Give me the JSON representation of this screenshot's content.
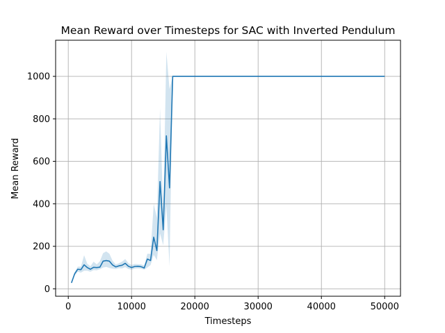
{
  "chart_data": {
    "type": "line",
    "title": "Mean Reward over Timesteps for SAC with Inverted Pendulum",
    "xlabel": "Timesteps",
    "ylabel": "Mean Reward",
    "xlim": [
      -2000,
      52500
    ],
    "ylim": [
      -35,
      1170
    ],
    "xticks": [
      0,
      10000,
      20000,
      30000,
      40000,
      50000
    ],
    "yticks": [
      0,
      200,
      400,
      600,
      800,
      1000
    ],
    "grid": true,
    "series": [
      {
        "color": "#1f77b4",
        "band_color": "#1f77b4",
        "x": [
          500,
          1000,
          1500,
          2000,
          2500,
          3000,
          3500,
          4000,
          4500,
          5000,
          5500,
          6000,
          6500,
          7000,
          7500,
          8000,
          8500,
          9000,
          9500,
          10000,
          10500,
          11000,
          11500,
          12000,
          12500,
          13000,
          13500,
          14000,
          14500,
          15000,
          15500,
          16000,
          16500,
          17000,
          20000,
          25000,
          30000,
          35000,
          40000,
          45000,
          50000
        ],
        "y": [
          28,
          70,
          92,
          90,
          113,
          100,
          92,
          101,
          100,
          102,
          130,
          133,
          130,
          112,
          103,
          108,
          111,
          120,
          106,
          100,
          105,
          106,
          104,
          98,
          140,
          133,
          243,
          180,
          505,
          278,
          720,
          475,
          1000,
          1000,
          1000,
          1000,
          1000,
          1000,
          1000,
          1000,
          1000
        ],
        "y_lower": [
          28,
          62,
          80,
          76,
          85,
          85,
          80,
          88,
          87,
          92,
          100,
          103,
          98,
          95,
          93,
          97,
          96,
          102,
          93,
          90,
          95,
          96,
          95,
          90,
          100,
          112,
          160,
          135,
          260,
          205,
          390,
          105,
          1000,
          1000,
          1000,
          1000,
          1000,
          1000,
          1000,
          1000,
          1000
        ],
        "y_upper": [
          28,
          78,
          104,
          104,
          158,
          118,
          106,
          128,
          115,
          130,
          168,
          176,
          165,
          132,
          115,
          120,
          128,
          140,
          121,
          112,
          117,
          116,
          115,
          110,
          165,
          165,
          400,
          335,
          850,
          355,
          1115,
          940,
          1000,
          1000,
          1000,
          1000,
          1000,
          1000,
          1000,
          1000,
          1000
        ]
      }
    ]
  }
}
